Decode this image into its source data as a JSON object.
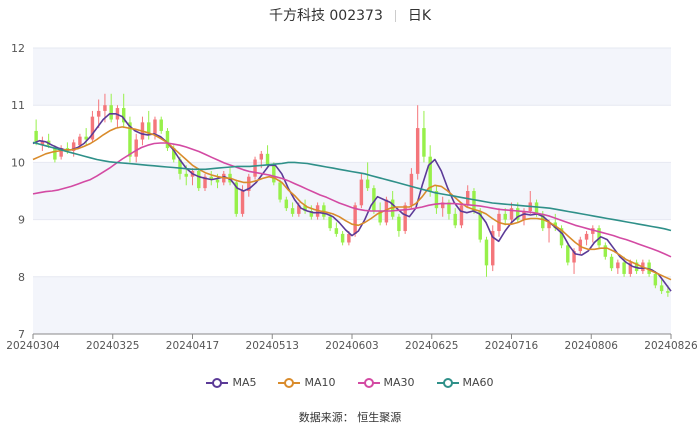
{
  "header": {
    "title": "千方科技 002373",
    "period": "日K"
  },
  "legend": {
    "ma5": "MA5",
    "ma10": "MA10",
    "ma30": "MA30",
    "ma60": "MA60"
  },
  "footer": {
    "source": "数据来源：  恒生聚源"
  },
  "colors": {
    "up": "#f4767b",
    "down": "#97f04a",
    "ma5": "#5b3a97",
    "ma10": "#d98b2b",
    "ma30": "#d34aa3",
    "ma60": "#2f9089",
    "band": "#f3f5fb",
    "grid": "#e6e9f2"
  },
  "chart_data": {
    "type": "candlestick",
    "title": "千方科技 002373 日K",
    "ylim": [
      7,
      12
    ],
    "yticks": [
      7,
      8,
      9,
      10,
      11,
      12
    ],
    "xticks": [
      "20240304",
      "20240325",
      "20240417",
      "20240513",
      "20240603",
      "20240625",
      "20240716",
      "20240806",
      "20240826"
    ],
    "grid": true,
    "legend_position": "bottom",
    "num_sessions": 120,
    "candles_ohlc_approx": [
      [
        10.55,
        10.75,
        10.3,
        10.35
      ],
      [
        10.3,
        10.45,
        10.2,
        10.38
      ],
      [
        10.38,
        10.5,
        10.25,
        10.3
      ],
      [
        10.25,
        10.3,
        10.0,
        10.05
      ],
      [
        10.1,
        10.3,
        10.05,
        10.25
      ],
      [
        10.25,
        10.35,
        10.15,
        10.2
      ],
      [
        10.2,
        10.4,
        10.1,
        10.35
      ],
      [
        10.3,
        10.5,
        10.25,
        10.45
      ],
      [
        10.45,
        10.6,
        10.3,
        10.4
      ],
      [
        10.4,
        10.9,
        10.35,
        10.8
      ],
      [
        10.8,
        11.1,
        10.6,
        10.9
      ],
      [
        10.9,
        11.2,
        10.7,
        11.0
      ],
      [
        11.0,
        11.2,
        10.7,
        10.75
      ],
      [
        10.75,
        11.0,
        10.6,
        10.95
      ],
      [
        10.95,
        11.2,
        10.6,
        10.7
      ],
      [
        10.7,
        10.8,
        10.0,
        10.1
      ],
      [
        10.1,
        10.5,
        10.0,
        10.4
      ],
      [
        10.4,
        10.8,
        10.3,
        10.7
      ],
      [
        10.7,
        10.9,
        10.4,
        10.5
      ],
      [
        10.5,
        10.8,
        10.4,
        10.75
      ],
      [
        10.75,
        10.8,
        10.5,
        10.55
      ],
      [
        10.55,
        10.6,
        10.2,
        10.25
      ],
      [
        10.25,
        10.3,
        10.0,
        10.05
      ],
      [
        10.05,
        10.1,
        9.7,
        9.8
      ],
      [
        9.8,
        9.95,
        9.6,
        9.75
      ],
      [
        9.75,
        9.9,
        9.6,
        9.85
      ],
      [
        9.85,
        9.9,
        9.5,
        9.55
      ],
      [
        9.55,
        9.8,
        9.5,
        9.75
      ],
      [
        9.75,
        9.85,
        9.6,
        9.7
      ],
      [
        9.7,
        9.8,
        9.55,
        9.65
      ],
      [
        9.65,
        9.85,
        9.6,
        9.8
      ],
      [
        9.8,
        9.9,
        9.6,
        9.65
      ],
      [
        9.65,
        9.7,
        9.05,
        9.1
      ],
      [
        9.1,
        9.6,
        9.05,
        9.5
      ],
      [
        9.5,
        9.8,
        9.4,
        9.75
      ],
      [
        9.75,
        10.1,
        9.7,
        10.05
      ],
      [
        10.05,
        10.2,
        9.9,
        10.15
      ],
      [
        10.15,
        10.3,
        9.9,
        9.95
      ],
      [
        9.95,
        10.0,
        9.6,
        9.65
      ],
      [
        9.65,
        9.7,
        9.3,
        9.35
      ],
      [
        9.35,
        9.4,
        9.15,
        9.2
      ],
      [
        9.2,
        9.3,
        9.05,
        9.1
      ],
      [
        9.1,
        9.3,
        9.05,
        9.25
      ],
      [
        9.25,
        9.35,
        9.1,
        9.15
      ],
      [
        9.15,
        9.25,
        9.0,
        9.05
      ],
      [
        9.05,
        9.3,
        9.0,
        9.25
      ],
      [
        9.25,
        9.3,
        9.0,
        9.05
      ],
      [
        9.05,
        9.1,
        8.8,
        8.85
      ],
      [
        8.85,
        8.95,
        8.7,
        8.75
      ],
      [
        8.75,
        8.8,
        8.55,
        8.6
      ],
      [
        8.6,
        8.8,
        8.55,
        8.75
      ],
      [
        8.75,
        9.3,
        8.7,
        9.25
      ],
      [
        9.25,
        9.8,
        9.2,
        9.7
      ],
      [
        9.7,
        10.0,
        9.5,
        9.55
      ],
      [
        9.55,
        9.6,
        9.1,
        9.15
      ],
      [
        9.15,
        9.3,
        8.9,
        8.95
      ],
      [
        8.95,
        9.4,
        8.9,
        9.35
      ],
      [
        9.35,
        9.5,
        9.0,
        9.05
      ],
      [
        9.05,
        9.1,
        8.7,
        8.8
      ],
      [
        8.8,
        9.3,
        8.75,
        9.25
      ],
      [
        9.25,
        9.9,
        9.2,
        9.8
      ],
      [
        9.8,
        11.0,
        9.7,
        10.6
      ],
      [
        10.6,
        10.9,
        10.0,
        10.1
      ],
      [
        10.1,
        10.3,
        9.4,
        9.5
      ],
      [
        9.5,
        9.6,
        9.1,
        9.2
      ],
      [
        9.2,
        9.4,
        9.05,
        9.3
      ],
      [
        9.3,
        9.35,
        9.0,
        9.1
      ],
      [
        9.1,
        9.2,
        8.85,
        8.9
      ],
      [
        8.9,
        9.3,
        8.85,
        9.25
      ],
      [
        9.25,
        9.6,
        9.2,
        9.5
      ],
      [
        9.5,
        9.55,
        9.1,
        9.15
      ],
      [
        9.15,
        9.2,
        8.6,
        8.65
      ],
      [
        8.65,
        8.7,
        8.0,
        8.2
      ],
      [
        8.2,
        8.9,
        8.1,
        8.8
      ],
      [
        8.8,
        9.2,
        8.7,
        9.1
      ],
      [
        9.1,
        9.2,
        8.9,
        9.0
      ],
      [
        9.0,
        9.3,
        8.95,
        9.2
      ],
      [
        9.2,
        9.3,
        8.95,
        9.0
      ],
      [
        9.0,
        9.2,
        8.9,
        9.15
      ],
      [
        9.15,
        9.5,
        9.1,
        9.3
      ],
      [
        9.3,
        9.35,
        9.05,
        9.1
      ],
      [
        9.1,
        9.15,
        8.8,
        8.85
      ],
      [
        8.85,
        9.0,
        8.6,
        8.95
      ],
      [
        8.95,
        9.1,
        8.8,
        8.85
      ],
      [
        8.85,
        8.9,
        8.5,
        8.55
      ],
      [
        8.55,
        8.6,
        8.2,
        8.25
      ],
      [
        8.25,
        8.5,
        8.05,
        8.45
      ],
      [
        8.45,
        8.7,
        8.4,
        8.65
      ],
      [
        8.65,
        8.8,
        8.55,
        8.75
      ],
      [
        8.75,
        8.9,
        8.6,
        8.85
      ],
      [
        8.85,
        8.9,
        8.5,
        8.55
      ],
      [
        8.55,
        8.6,
        8.3,
        8.35
      ],
      [
        8.35,
        8.4,
        8.1,
        8.15
      ],
      [
        8.15,
        8.3,
        8.05,
        8.25
      ],
      [
        8.25,
        8.35,
        8.0,
        8.05
      ],
      [
        8.05,
        8.3,
        8.0,
        8.25
      ],
      [
        8.25,
        8.3,
        8.05,
        8.1
      ],
      [
        8.1,
        8.3,
        8.05,
        8.25
      ],
      [
        8.25,
        8.3,
        8.0,
        8.05
      ],
      [
        8.05,
        8.1,
        7.8,
        7.85
      ],
      [
        7.85,
        7.95,
        7.7,
        7.75
      ],
      [
        7.75,
        7.85,
        7.65,
        7.72
      ]
    ],
    "series": [
      {
        "name": "MA5",
        "values": [
          10.33,
          10.38,
          10.36,
          10.3,
          10.25,
          10.22,
          10.22,
          10.26,
          10.33,
          10.45,
          10.6,
          10.75,
          10.85,
          10.85,
          10.8,
          10.65,
          10.55,
          10.5,
          10.48,
          10.5,
          10.45,
          10.35,
          10.22,
          10.05,
          9.9,
          9.8,
          9.75,
          9.72,
          9.7,
          9.72,
          9.75,
          9.7,
          9.55,
          9.5,
          9.55,
          9.65,
          9.8,
          9.95,
          9.95,
          9.8,
          9.55,
          9.35,
          9.2,
          9.15,
          9.12,
          9.12,
          9.1,
          9.05,
          8.95,
          8.82,
          8.72,
          8.8,
          9.0,
          9.25,
          9.4,
          9.35,
          9.3,
          9.2,
          9.1,
          9.05,
          9.2,
          9.6,
          9.95,
          10.05,
          9.85,
          9.55,
          9.3,
          9.15,
          9.12,
          9.15,
          9.1,
          8.95,
          8.7,
          8.62,
          8.8,
          8.95,
          9.05,
          9.1,
          9.08,
          9.1,
          9.05,
          8.95,
          8.85,
          8.75,
          8.55,
          8.4,
          8.38,
          8.45,
          8.6,
          8.7,
          8.65,
          8.5,
          8.35,
          8.25,
          8.18,
          8.15,
          8.15,
          8.12,
          8.05,
          7.9,
          7.75
        ]
      },
      {
        "name": "MA10",
        "values": [
          10.05,
          10.1,
          10.15,
          10.18,
          10.2,
          10.22,
          10.22,
          10.24,
          10.28,
          10.33,
          10.4,
          10.48,
          10.55,
          10.6,
          10.62,
          10.6,
          10.58,
          10.55,
          10.52,
          10.48,
          10.42,
          10.35,
          10.25,
          10.15,
          10.05,
          9.95,
          9.88,
          9.82,
          9.78,
          9.75,
          9.73,
          9.72,
          9.68,
          9.65,
          9.65,
          9.68,
          9.72,
          9.75,
          9.72,
          9.65,
          9.52,
          9.42,
          9.3,
          9.22,
          9.18,
          9.15,
          9.13,
          9.1,
          9.05,
          8.98,
          8.92,
          8.9,
          8.95,
          9.02,
          9.1,
          9.15,
          9.2,
          9.22,
          9.22,
          9.22,
          9.28,
          9.4,
          9.55,
          9.6,
          9.58,
          9.5,
          9.4,
          9.3,
          9.22,
          9.18,
          9.15,
          9.1,
          9.02,
          8.95,
          8.92,
          8.92,
          8.95,
          9.0,
          9.02,
          9.02,
          9.0,
          8.95,
          8.88,
          8.8,
          8.7,
          8.6,
          8.52,
          8.48,
          8.48,
          8.5,
          8.5,
          8.45,
          8.38,
          8.3,
          8.25,
          8.2,
          8.15,
          8.1,
          8.05,
          8.0,
          7.95
        ]
      },
      {
        "name": "MA30",
        "values": [
          9.45,
          9.47,
          9.49,
          9.5,
          9.52,
          9.55,
          9.58,
          9.62,
          9.66,
          9.7,
          9.76,
          9.83,
          9.9,
          9.98,
          10.06,
          10.13,
          10.2,
          10.26,
          10.3,
          10.33,
          10.34,
          10.34,
          10.32,
          10.3,
          10.27,
          10.23,
          10.19,
          10.14,
          10.09,
          10.04,
          9.99,
          9.95,
          9.91,
          9.87,
          9.84,
          9.82,
          9.8,
          9.78,
          9.75,
          9.72,
          9.68,
          9.63,
          9.58,
          9.53,
          9.48,
          9.43,
          9.39,
          9.34,
          9.29,
          9.25,
          9.21,
          9.18,
          9.16,
          9.15,
          9.15,
          9.15,
          9.15,
          9.16,
          9.17,
          9.18,
          9.2,
          9.22,
          9.25,
          9.27,
          9.28,
          9.28,
          9.28,
          9.27,
          9.26,
          9.25,
          9.24,
          9.22,
          9.2,
          9.18,
          9.17,
          9.16,
          9.15,
          9.14,
          9.13,
          9.11,
          9.09,
          9.06,
          9.02,
          8.98,
          8.94,
          8.9,
          8.87,
          8.84,
          8.81,
          8.78,
          8.75,
          8.72,
          8.68,
          8.65,
          8.61,
          8.57,
          8.53,
          8.49,
          8.45,
          8.4,
          8.35
        ]
      },
      {
        "name": "MA60",
        "values": [
          10.35,
          10.32,
          10.29,
          10.26,
          10.23,
          10.2,
          10.17,
          10.14,
          10.11,
          10.08,
          10.05,
          10.03,
          10.01,
          10.0,
          9.99,
          9.98,
          9.97,
          9.96,
          9.95,
          9.94,
          9.93,
          9.92,
          9.91,
          9.9,
          9.89,
          9.88,
          9.88,
          9.88,
          9.89,
          9.9,
          9.91,
          9.92,
          9.93,
          9.93,
          9.93,
          9.94,
          9.95,
          9.96,
          9.97,
          9.98,
          10.0,
          10.0,
          9.99,
          9.98,
          9.96,
          9.94,
          9.92,
          9.9,
          9.88,
          9.86,
          9.84,
          9.82,
          9.8,
          9.77,
          9.74,
          9.71,
          9.68,
          9.65,
          9.62,
          9.59,
          9.56,
          9.53,
          9.5,
          9.47,
          9.45,
          9.43,
          9.41,
          9.39,
          9.37,
          9.35,
          9.33,
          9.31,
          9.29,
          9.28,
          9.27,
          9.26,
          9.25,
          9.24,
          9.23,
          9.22,
          9.21,
          9.2,
          9.18,
          9.16,
          9.14,
          9.12,
          9.1,
          9.08,
          9.06,
          9.04,
          9.02,
          9.0,
          8.98,
          8.96,
          8.94,
          8.92,
          8.9,
          8.88,
          8.86,
          8.84,
          8.81
        ]
      }
    ]
  }
}
